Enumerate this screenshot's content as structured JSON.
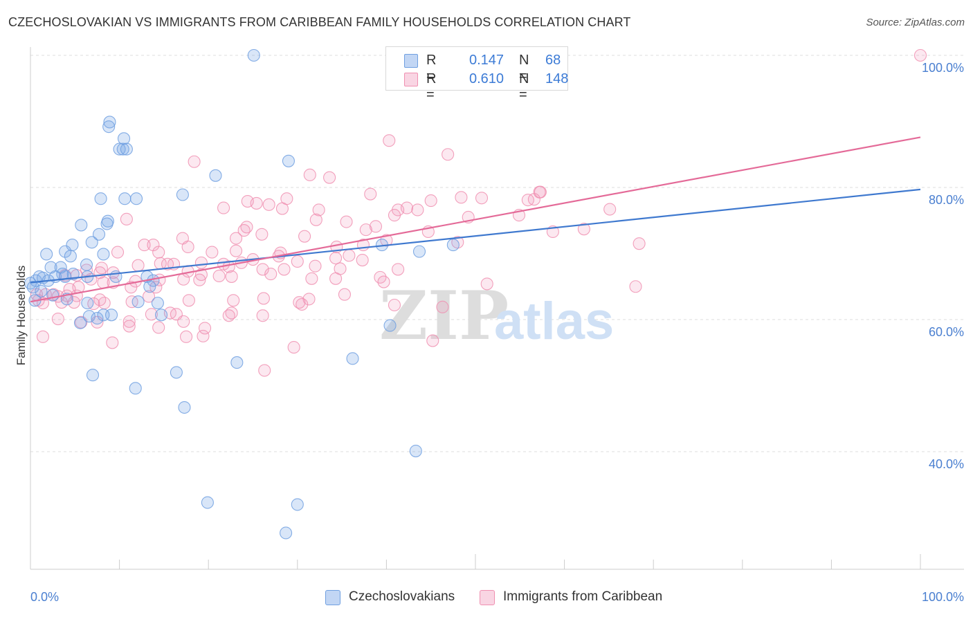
{
  "title": "CZECHOSLOVAKIAN VS IMMIGRANTS FROM CARIBBEAN FAMILY HOUSEHOLDS CORRELATION CHART",
  "source": "Source: ZipAtlas.com",
  "watermark": {
    "zip": "ZIP",
    "atlas": "atlas"
  },
  "legend_top": {
    "rows": [
      {
        "r_label": "R =",
        "r_value": "0.147",
        "n_label": "N =",
        "n_value": "68",
        "color": "#6f9fe0"
      },
      {
        "r_label": "R =",
        "r_value": "0.610",
        "n_label": "N =",
        "n_value": "148",
        "color": "#f08fb0"
      }
    ]
  },
  "legend_bottom": {
    "items": [
      {
        "label": "Czechoslovakians",
        "color": "#6f9fe0"
      },
      {
        "label": "Immigrants from Caribbean",
        "color": "#f08fb0"
      }
    ]
  },
  "chart_data": {
    "type": "scatter",
    "ylabel": "Family Households",
    "xlim": [
      0,
      100
    ],
    "ylim": [
      20,
      101.5
    ],
    "x_tick_labels": [
      "0.0%",
      "100.0%"
    ],
    "y_ticks": [
      40,
      60,
      80,
      100
    ],
    "y_tick_labels": [
      "40.0%",
      "60.0%",
      "80.0%",
      "100.0%"
    ],
    "grid": true,
    "series": [
      {
        "name": "Czechoslovakians",
        "color": "#6f9fe0",
        "fill": "rgba(120,165,230,0.28)",
        "trend": {
          "x": [
            0,
            100
          ],
          "y": [
            65.6,
            79.7
          ]
        },
        "points": [
          [
            25.1,
            100.0
          ],
          [
            8.8,
            89.2
          ],
          [
            8.9,
            89.9
          ],
          [
            10.5,
            87.4
          ],
          [
            10.0,
            85.8
          ],
          [
            10.4,
            85.8
          ],
          [
            10.8,
            85.8
          ],
          [
            29.0,
            84.0
          ],
          [
            20.8,
            81.8
          ],
          [
            17.1,
            78.9
          ],
          [
            7.9,
            78.3
          ],
          [
            10.6,
            78.3
          ],
          [
            11.9,
            78.3
          ],
          [
            5.7,
            74.3
          ],
          [
            8.7,
            74.9
          ],
          [
            8.6,
            74.5
          ],
          [
            7.7,
            72.9
          ],
          [
            6.9,
            71.7
          ],
          [
            4.7,
            71.3
          ],
          [
            3.9,
            70.3
          ],
          [
            1.8,
            69.9
          ],
          [
            8.2,
            69.9
          ],
          [
            4.5,
            69.6
          ],
          [
            6.3,
            68.3
          ],
          [
            2.3,
            67.9
          ],
          [
            3.4,
            67.9
          ],
          [
            4.8,
            66.9
          ],
          [
            3.6,
            66.9
          ],
          [
            1.0,
            66.5
          ],
          [
            2.8,
            66.5
          ],
          [
            3.9,
            66.5
          ],
          [
            6.4,
            66.5
          ],
          [
            9.6,
            66.5
          ],
          [
            13.1,
            66.5
          ],
          [
            0.6,
            65.9
          ],
          [
            1.4,
            66.3
          ],
          [
            2.0,
            65.9
          ],
          [
            13.8,
            65.9
          ],
          [
            0.0,
            65.5
          ],
          [
            0.3,
            64.9
          ],
          [
            13.4,
            65.0
          ],
          [
            4.1,
            63.1
          ],
          [
            6.4,
            62.5
          ],
          [
            14.3,
            62.5
          ],
          [
            9.1,
            60.7
          ],
          [
            6.6,
            60.5
          ],
          [
            8.2,
            60.7
          ],
          [
            14.7,
            60.7
          ],
          [
            5.6,
            59.5
          ],
          [
            7.5,
            60.2
          ],
          [
            40.4,
            59.1
          ],
          [
            36.2,
            54.1
          ],
          [
            23.2,
            53.5
          ],
          [
            16.4,
            52.0
          ],
          [
            7.0,
            51.6
          ],
          [
            11.8,
            49.6
          ],
          [
            17.3,
            46.7
          ],
          [
            43.3,
            40.1
          ],
          [
            19.9,
            32.3
          ],
          [
            30.0,
            32.0
          ],
          [
            28.7,
            27.7
          ],
          [
            39.5,
            71.3
          ],
          [
            43.7,
            70.3
          ],
          [
            47.5,
            71.3
          ],
          [
            0.5,
            62.9
          ],
          [
            1.2,
            64.3
          ],
          [
            2.5,
            63.7
          ],
          [
            12.1,
            62.7
          ]
        ]
      },
      {
        "name": "Immigrants from Caribbean",
        "color": "#f08fb0",
        "fill": "rgba(240,150,185,0.22)",
        "trend": {
          "x": [
            0,
            100
          ],
          "y": [
            62.7,
            87.6
          ]
        },
        "points": [
          [
            100.0,
            100.0
          ],
          [
            40.3,
            87.1
          ],
          [
            46.9,
            85.0
          ],
          [
            18.4,
            83.9
          ],
          [
            31.4,
            81.9
          ],
          [
            33.6,
            81.5
          ],
          [
            38.2,
            79.0
          ],
          [
            57.3,
            79.3
          ],
          [
            48.4,
            78.5
          ],
          [
            50.7,
            78.4
          ],
          [
            28.8,
            78.3
          ],
          [
            56.6,
            78.2
          ],
          [
            55.9,
            78.1
          ],
          [
            45.0,
            78.0
          ],
          [
            24.4,
            77.9
          ],
          [
            25.4,
            77.6
          ],
          [
            26.8,
            77.4
          ],
          [
            21.7,
            76.9
          ],
          [
            28.3,
            76.8
          ],
          [
            42.3,
            76.9
          ],
          [
            41.3,
            76.6
          ],
          [
            43.5,
            76.6
          ],
          [
            65.1,
            76.7
          ],
          [
            32.4,
            76.6
          ],
          [
            40.9,
            75.8
          ],
          [
            54.9,
            75.8
          ],
          [
            49.2,
            75.5
          ],
          [
            32.1,
            75.1
          ],
          [
            10.8,
            75.2
          ],
          [
            35.5,
            74.8
          ],
          [
            38.8,
            74.1
          ],
          [
            37.7,
            73.6
          ],
          [
            24.3,
            74.0
          ],
          [
            24.0,
            73.5
          ],
          [
            44.7,
            73.3
          ],
          [
            58.7,
            73.3
          ],
          [
            62.2,
            73.7
          ],
          [
            26.0,
            72.9
          ],
          [
            17.1,
            72.3
          ],
          [
            23.1,
            72.3
          ],
          [
            30.8,
            72.6
          ],
          [
            40.0,
            72.0
          ],
          [
            48.0,
            71.7
          ],
          [
            68.4,
            71.5
          ],
          [
            12.8,
            71.3
          ],
          [
            13.8,
            71.3
          ],
          [
            17.7,
            71.0
          ],
          [
            34.4,
            71.0
          ],
          [
            37.4,
            71.3
          ],
          [
            20.4,
            70.2
          ],
          [
            23.1,
            70.4
          ],
          [
            14.4,
            70.2
          ],
          [
            9.8,
            70.2
          ],
          [
            28.1,
            70.1
          ],
          [
            27.9,
            69.6
          ],
          [
            35.8,
            69.7
          ],
          [
            34.3,
            69.3
          ],
          [
            23.7,
            68.6
          ],
          [
            19.2,
            68.6
          ],
          [
            25.0,
            69.1
          ],
          [
            30.0,
            68.8
          ],
          [
            14.6,
            68.5
          ],
          [
            15.4,
            68.4
          ],
          [
            16.1,
            68.4
          ],
          [
            21.7,
            68.4
          ],
          [
            22.3,
            68.0
          ],
          [
            8.0,
            67.8
          ],
          [
            12.1,
            68.2
          ],
          [
            6.3,
            67.5
          ],
          [
            26.1,
            67.6
          ],
          [
            34.8,
            67.7
          ],
          [
            28.5,
            67.6
          ],
          [
            41.3,
            67.6
          ],
          [
            7.8,
            67.1
          ],
          [
            9.3,
            67.1
          ],
          [
            17.7,
            67.3
          ],
          [
            19.2,
            66.8
          ],
          [
            3.9,
            66.7
          ],
          [
            5.2,
            66.7
          ],
          [
            6.8,
            66.1
          ],
          [
            22.6,
            66.5
          ],
          [
            27.0,
            66.9
          ],
          [
            17.2,
            66.1
          ],
          [
            34.3,
            66.2
          ],
          [
            31.6,
            66.2
          ],
          [
            39.3,
            66.4
          ],
          [
            39.7,
            65.7
          ],
          [
            8.2,
            65.6
          ],
          [
            9.3,
            65.6
          ],
          [
            11.8,
            65.8
          ],
          [
            51.3,
            65.4
          ],
          [
            68.0,
            65.0
          ],
          [
            5.4,
            64.9
          ],
          [
            11.3,
            64.9
          ],
          [
            14.1,
            64.9
          ],
          [
            4.4,
            64.6
          ],
          [
            0.7,
            63.8
          ],
          [
            1.7,
            63.8
          ],
          [
            2.6,
            63.8
          ],
          [
            3.1,
            63.5
          ],
          [
            4.1,
            63.6
          ],
          [
            5.2,
            63.6
          ],
          [
            13.3,
            63.5
          ],
          [
            26.2,
            63.2
          ],
          [
            31.3,
            63.1
          ],
          [
            30.2,
            62.6
          ],
          [
            22.8,
            62.9
          ],
          [
            17.8,
            62.9
          ],
          [
            0.9,
            62.9
          ],
          [
            3.5,
            62.6
          ],
          [
            11.4,
            62.7
          ],
          [
            8.3,
            62.5
          ],
          [
            1.4,
            62.5
          ],
          [
            7.1,
            62.4
          ],
          [
            4.9,
            62.6
          ],
          [
            30.5,
            62.3
          ],
          [
            40.9,
            62.2
          ],
          [
            46.3,
            61.9
          ],
          [
            35.3,
            63.8
          ],
          [
            15.7,
            61.0
          ],
          [
            22.6,
            61.0
          ],
          [
            13.6,
            60.8
          ],
          [
            16.4,
            60.8
          ],
          [
            22.3,
            60.6
          ],
          [
            26.1,
            60.6
          ],
          [
            3.1,
            60.1
          ],
          [
            17.2,
            59.7
          ],
          [
            11.1,
            59.7
          ],
          [
            5.7,
            59.6
          ],
          [
            7.5,
            59.6
          ],
          [
            11.1,
            59.0
          ],
          [
            14.4,
            58.8
          ],
          [
            19.6,
            58.7
          ],
          [
            1.4,
            57.4
          ],
          [
            17.5,
            57.4
          ],
          [
            19.4,
            57.5
          ],
          [
            9.2,
            56.5
          ],
          [
            29.6,
            55.8
          ],
          [
            26.3,
            52.3
          ],
          [
            45.2,
            56.8
          ],
          [
            57.2,
            79.3
          ],
          [
            37.3,
            69.0
          ],
          [
            21.2,
            66.6
          ],
          [
            32.0,
            68.1
          ],
          [
            7.8,
            63.0
          ],
          [
            19.0,
            66.0
          ],
          [
            14.5,
            66.0
          ]
        ]
      }
    ]
  }
}
